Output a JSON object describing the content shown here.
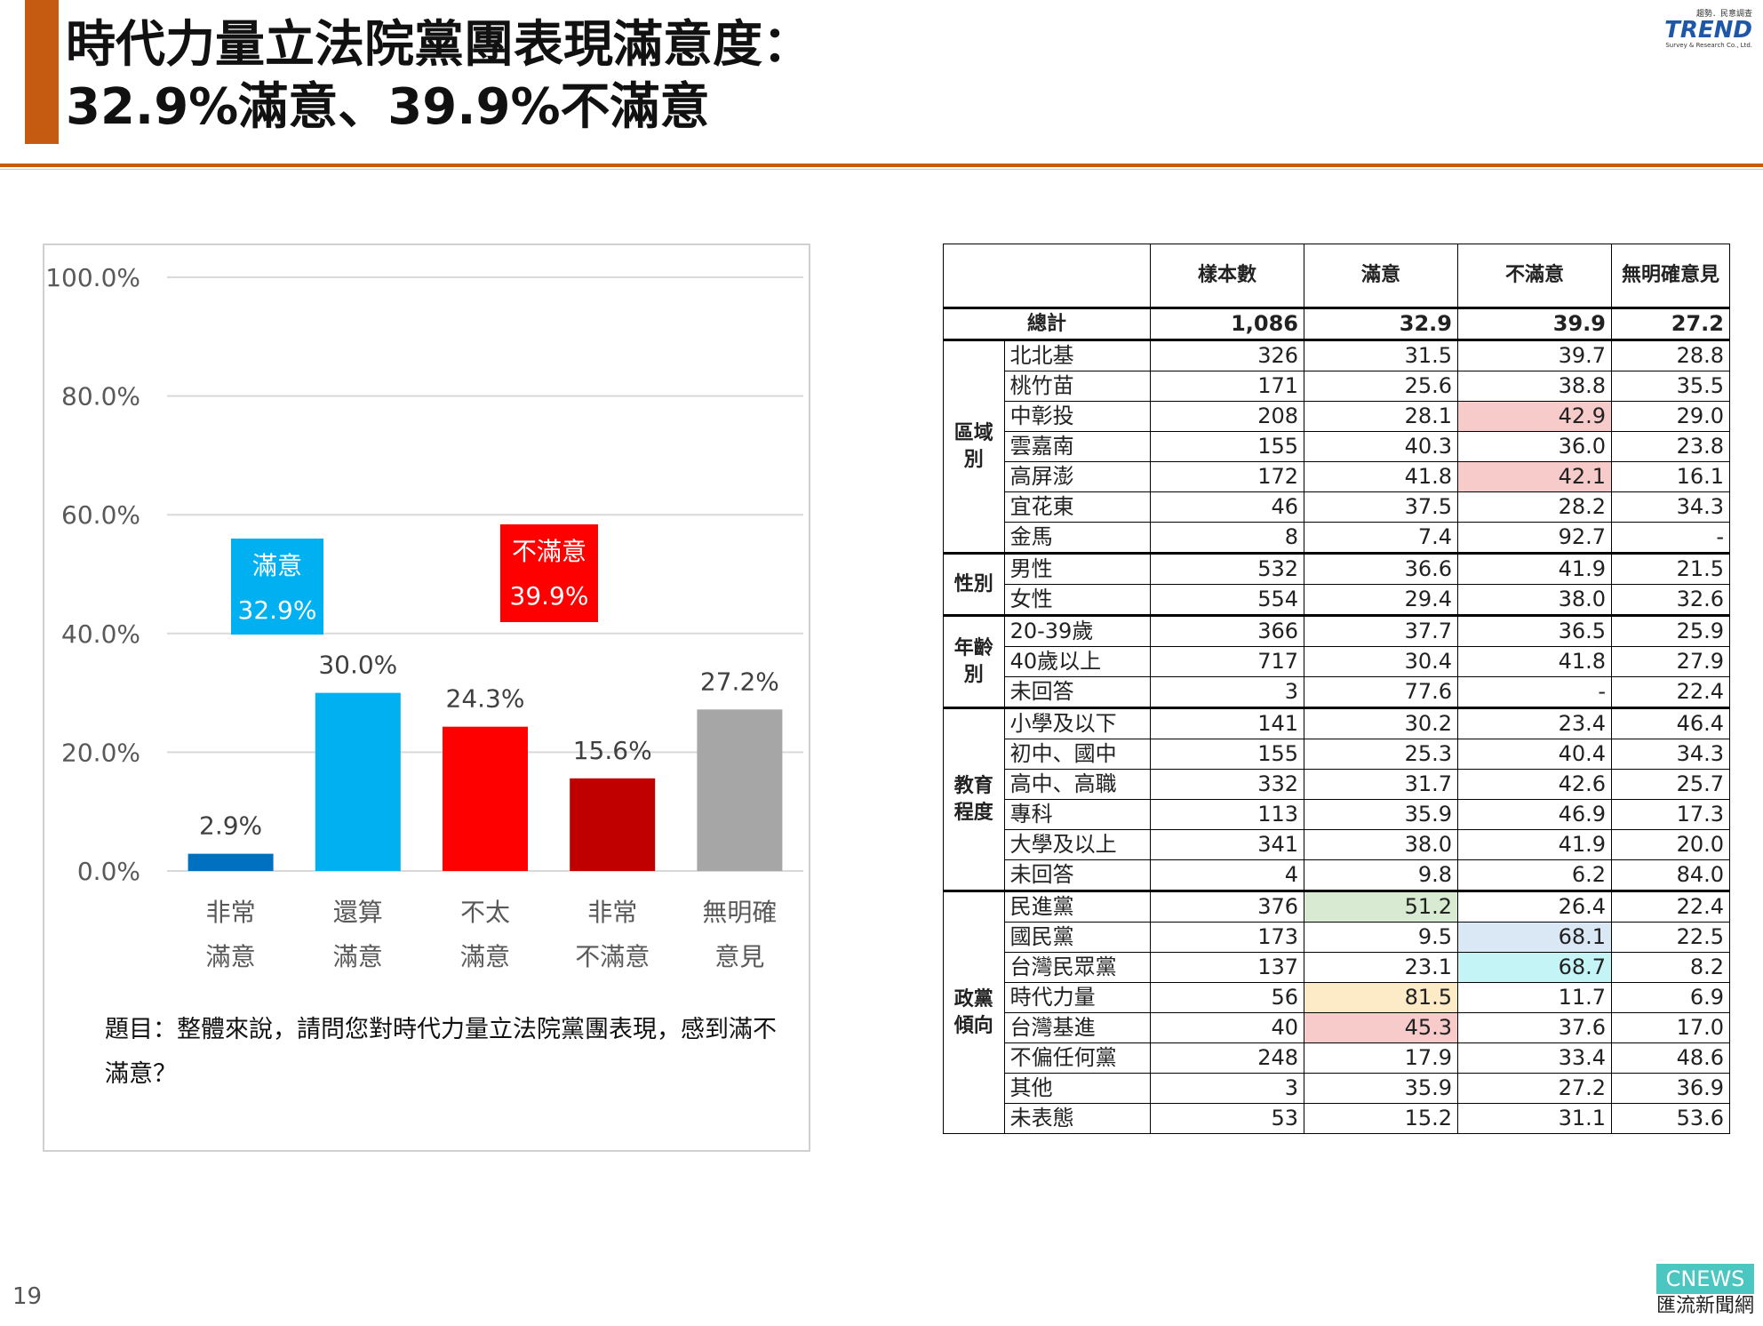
{
  "header": {
    "title_line1": "時代力量立法院黨團表現滿意度：",
    "title_line2": "32.9%滿意、39.9%不滿意"
  },
  "logo": {
    "top_text": "趨勢．民意調查",
    "brand": "TREND",
    "sub_text": "Survey & Research Co., Ltd."
  },
  "chart_data": {
    "type": "bar",
    "categories": [
      [
        "非常",
        "滿意"
      ],
      [
        "還算",
        "滿意"
      ],
      [
        "不太",
        "滿意"
      ],
      [
        "非常",
        "不滿意"
      ],
      [
        "無明確",
        "意見"
      ]
    ],
    "values": [
      2.9,
      30.0,
      24.3,
      15.6,
      27.2
    ],
    "value_labels": [
      "2.9%",
      "30.0%",
      "24.3%",
      "15.6%",
      "27.2%"
    ],
    "colors": [
      "#0070c0",
      "#00b0f0",
      "#ff0000",
      "#c00000",
      "#a6a6a6"
    ],
    "ylim": [
      0,
      100
    ],
    "yticks": [
      "0.0%",
      "20.0%",
      "40.0%",
      "60.0%",
      "80.0%",
      "100.0%"
    ],
    "ytick_values": [
      0,
      20,
      40,
      60,
      80,
      100
    ],
    "grid": true,
    "annotations": [
      {
        "line1": "滿意",
        "line2": "32.9%",
        "color": "#00b0f0"
      },
      {
        "line1": "不滿意",
        "line2": "39.9%",
        "color": "#ff0000"
      }
    ]
  },
  "question": "題目：整體來說，請問您對時代力量立法院黨團表現，感到滿不滿意？",
  "table": {
    "headers": [
      "",
      "樣本數",
      "滿意",
      "不滿意",
      "無明確意見"
    ],
    "total": {
      "label": "總計",
      "values": [
        "1,086",
        "32.9",
        "39.9",
        "27.2"
      ]
    },
    "groups": [
      {
        "name": "區域別",
        "rows": [
          {
            "label": "北北基",
            "values": [
              "326",
              "31.5",
              "39.7",
              "28.8"
            ]
          },
          {
            "label": "桃竹苗",
            "values": [
              "171",
              "25.6",
              "38.8",
              "35.5"
            ]
          },
          {
            "label": "中彰投",
            "values": [
              "208",
              "28.1",
              "42.9",
              "29.0"
            ],
            "hl": {
              "2": "#f8cbcb"
            }
          },
          {
            "label": "雲嘉南",
            "values": [
              "155",
              "40.3",
              "36.0",
              "23.8"
            ]
          },
          {
            "label": "高屏澎",
            "values": [
              "172",
              "41.8",
              "42.1",
              "16.1"
            ],
            "hl": {
              "2": "#f8cbcb"
            }
          },
          {
            "label": "宜花東",
            "values": [
              "46",
              "37.5",
              "28.2",
              "34.3"
            ]
          },
          {
            "label": "金馬",
            "values": [
              "8",
              "7.4",
              "92.7",
              "-"
            ]
          }
        ]
      },
      {
        "name": "性別",
        "rows": [
          {
            "label": "男性",
            "values": [
              "532",
              "36.6",
              "41.9",
              "21.5"
            ]
          },
          {
            "label": "女性",
            "values": [
              "554",
              "29.4",
              "38.0",
              "32.6"
            ]
          }
        ]
      },
      {
        "name": "年齡別",
        "rows": [
          {
            "label": "20-39歲",
            "values": [
              "366",
              "37.7",
              "36.5",
              "25.9"
            ]
          },
          {
            "label": "40歲以上",
            "values": [
              "717",
              "30.4",
              "41.8",
              "27.9"
            ]
          },
          {
            "label": "未回答",
            "values": [
              "3",
              "77.6",
              "-",
              "22.4"
            ]
          }
        ]
      },
      {
        "name": "教育程度",
        "rows": [
          {
            "label": "小學及以下",
            "values": [
              "141",
              "30.2",
              "23.4",
              "46.4"
            ]
          },
          {
            "label": "初中、國中",
            "values": [
              "155",
              "25.3",
              "40.4",
              "34.3"
            ]
          },
          {
            "label": "高中、高職",
            "values": [
              "332",
              "31.7",
              "42.6",
              "25.7"
            ]
          },
          {
            "label": "專科",
            "values": [
              "113",
              "35.9",
              "46.9",
              "17.3"
            ]
          },
          {
            "label": "大學及以上",
            "values": [
              "341",
              "38.0",
              "41.9",
              "20.0"
            ]
          },
          {
            "label": "未回答",
            "values": [
              "4",
              "9.8",
              "6.2",
              "84.0"
            ]
          }
        ]
      },
      {
        "name": "政黨傾向",
        "rows": [
          {
            "label": "民進黨",
            "values": [
              "376",
              "51.2",
              "26.4",
              "22.4"
            ],
            "hl": {
              "1": "#d9ead3"
            }
          },
          {
            "label": "國民黨",
            "values": [
              "173",
              "9.5",
              "68.1",
              "22.5"
            ],
            "hl": {
              "2": "#dae8f5"
            }
          },
          {
            "label": "台灣民眾黨",
            "values": [
              "137",
              "23.1",
              "68.7",
              "8.2"
            ],
            "hl": {
              "2": "#c5f4f6"
            }
          },
          {
            "label": "時代力量",
            "values": [
              "56",
              "81.5",
              "11.7",
              "6.9"
            ],
            "hl": {
              "1": "#fdebc8"
            }
          },
          {
            "label": "台灣基進",
            "values": [
              "40",
              "45.3",
              "37.6",
              "17.0"
            ],
            "hl": {
              "1": "#f8cbcb"
            }
          },
          {
            "label": "不偏任何黨",
            "values": [
              "248",
              "17.9",
              "33.4",
              "48.6"
            ]
          },
          {
            "label": "其他",
            "values": [
              "3",
              "35.9",
              "27.2",
              "36.9"
            ]
          },
          {
            "label": "未表態",
            "values": [
              "53",
              "15.2",
              "31.1",
              "53.6"
            ]
          }
        ]
      }
    ]
  },
  "footer": {
    "page_number": "19",
    "cnews_top": "CNEWS",
    "cnews_bottom": "匯流新聞網"
  }
}
